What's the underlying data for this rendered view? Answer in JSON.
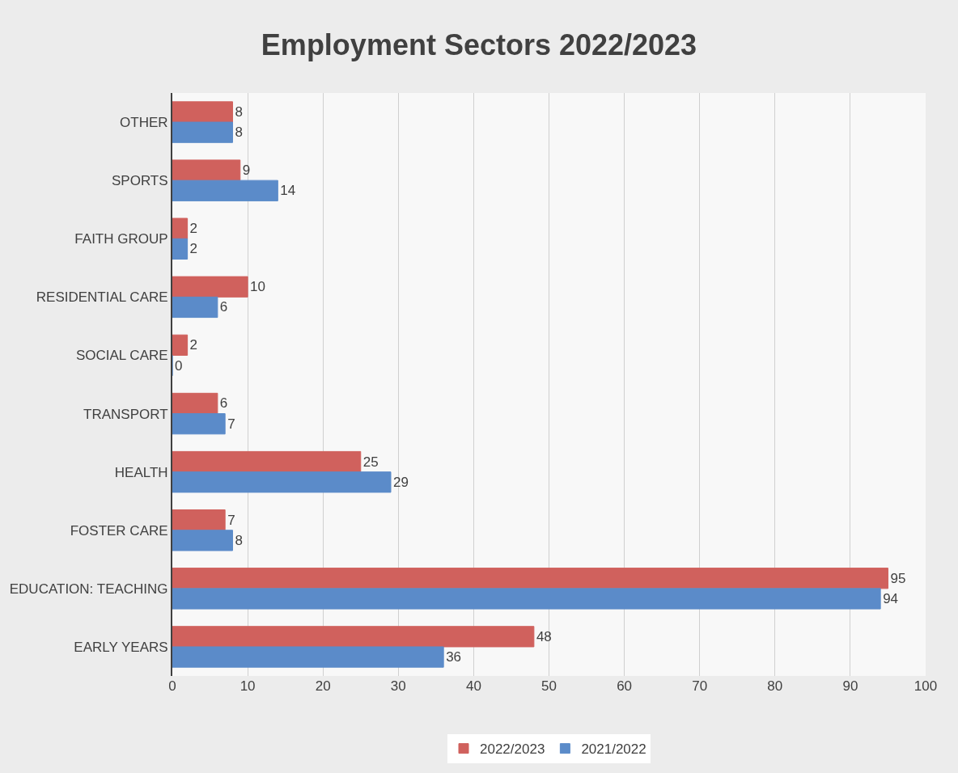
{
  "chart_data": {
    "type": "bar",
    "orientation": "horizontal",
    "title": "Employment Sectors 2022/2023",
    "categories": [
      "OTHER",
      "SPORTS",
      "FAITH GROUP",
      "RESIDENTIAL CARE",
      "SOCIAL CARE",
      "TRANSPORT",
      "HEALTH",
      "FOSTER CARE",
      "EDUCATION: TEACHING",
      "EARLY YEARS"
    ],
    "series": [
      {
        "name": "2022/2023",
        "color": "#d0615d",
        "values": [
          8,
          9,
          2,
          10,
          2,
          6,
          25,
          7,
          95,
          48
        ]
      },
      {
        "name": "2021/2022",
        "color": "#5b8bc9",
        "values": [
          8,
          14,
          2,
          6,
          0,
          7,
          29,
          8,
          94,
          36
        ]
      }
    ],
    "xlim": [
      0,
      100
    ],
    "xticks": [
      0,
      10,
      20,
      30,
      40,
      50,
      60,
      70,
      80,
      90,
      100
    ],
    "grid": "x",
    "legend": "bottom",
    "data_labels": true
  }
}
